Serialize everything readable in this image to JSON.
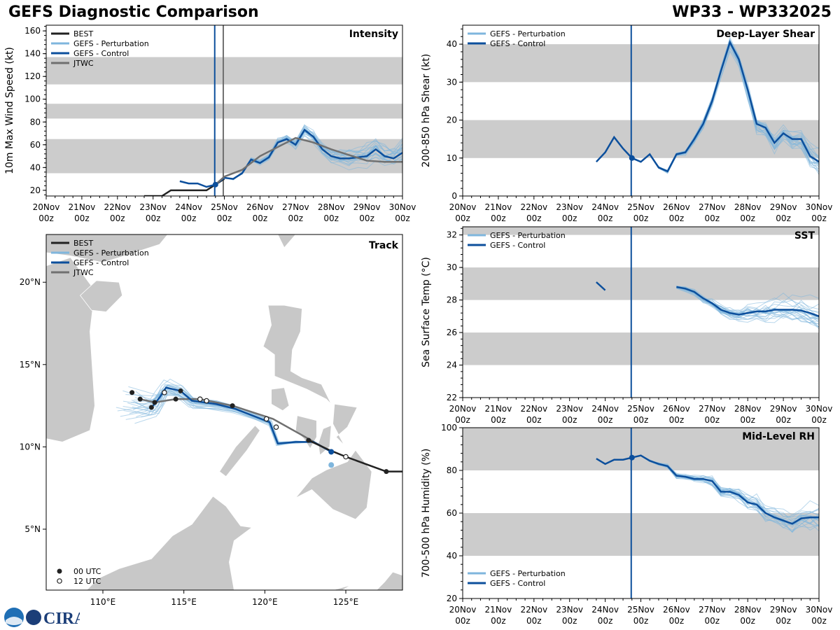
{
  "header": {
    "left_title": "GEFS Diagnostic Comparison",
    "right_title": "WP33 - WP332025"
  },
  "logo_text": "CIRA",
  "colors": {
    "best": "#222222",
    "perturbation": "#7fb6dd",
    "control": "#0c4f9c",
    "jtwc": "#707070",
    "band": "#cccccc",
    "land": "#c8c8c8"
  },
  "time_axis": {
    "ticks": [
      "20Nov\n00z",
      "21Nov\n00z",
      "22Nov\n00z",
      "23Nov\n00z",
      "24Nov\n00z",
      "25Nov\n00z",
      "26Nov\n00z",
      "27Nov\n00z",
      "28Nov\n00z",
      "29Nov\n00z",
      "30Nov\n00z"
    ],
    "init_day": 4.73,
    "jtwc_line_day": 4.97
  },
  "chart_data": [
    {
      "id": "intensity",
      "type": "line",
      "title": "Intensity",
      "ylabel": "10m Max Wind Speed (kt)",
      "xlim": [
        0,
        10
      ],
      "ylim": [
        15,
        165
      ],
      "yticks": [
        20,
        40,
        60,
        80,
        100,
        120,
        140,
        160
      ],
      "bands": [
        [
          35,
          65
        ],
        [
          83,
          96
        ],
        [
          113,
          137
        ]
      ],
      "legend": [
        "BEST",
        "GEFS - Perturbation",
        "GEFS - Control",
        "JTWC"
      ],
      "series": [
        {
          "name": "BEST",
          "kind": "best",
          "points": [
            [
              2.75,
              15
            ],
            [
              3.25,
              15
            ],
            [
              3.5,
              20
            ],
            [
              4.0,
              20
            ],
            [
              4.5,
              20
            ],
            [
              4.75,
              25
            ],
            [
              5.0,
              30
            ]
          ]
        },
        {
          "name": "GEFS - Control",
          "kind": "control",
          "points": [
            [
              3.75,
              28
            ],
            [
              4.0,
              26
            ],
            [
              4.25,
              26
            ],
            [
              4.5,
              23
            ],
            [
              4.75,
              25
            ],
            [
              5.0,
              31
            ],
            [
              5.25,
              30
            ],
            [
              5.5,
              35
            ],
            [
              5.75,
              47
            ],
            [
              6.0,
              44
            ],
            [
              6.25,
              49
            ],
            [
              6.5,
              62
            ],
            [
              6.75,
              65
            ],
            [
              7.0,
              60
            ],
            [
              7.25,
              73
            ],
            [
              7.5,
              67
            ],
            [
              7.75,
              56
            ],
            [
              8.0,
              50
            ],
            [
              8.25,
              48
            ],
            [
              8.5,
              48
            ],
            [
              8.75,
              49
            ],
            [
              9.0,
              50
            ],
            [
              9.25,
              56
            ],
            [
              9.5,
              50
            ],
            [
              9.75,
              48
            ],
            [
              10.0,
              53
            ]
          ]
        },
        {
          "name": "JTWC",
          "kind": "jtwc",
          "points": [
            [
              4.75,
              25
            ],
            [
              5.0,
              32
            ],
            [
              5.5,
              38
            ],
            [
              6.0,
              50
            ],
            [
              6.5,
              58
            ],
            [
              7.0,
              66
            ],
            [
              7.5,
              62
            ],
            [
              8.0,
              56
            ],
            [
              8.5,
              51
            ],
            [
              9.0,
              46
            ],
            [
              9.5,
              45
            ],
            [
              10.0,
              45
            ]
          ]
        }
      ]
    },
    {
      "id": "shear",
      "type": "line",
      "title": "Deep-Layer Shear",
      "ylabel": "200-850 hPa Shear (kt)",
      "xlim": [
        0,
        10
      ],
      "ylim": [
        0,
        45
      ],
      "yticks": [
        0,
        10,
        20,
        30,
        40
      ],
      "bands": [
        [
          10,
          20
        ],
        [
          30,
          40
        ]
      ],
      "legend": [
        "GEFS - Perturbation",
        "GEFS - Control"
      ],
      "series": [
        {
          "name": "GEFS - Control",
          "kind": "control",
          "points": [
            [
              3.75,
              9
            ],
            [
              4.0,
              11.5
            ],
            [
              4.25,
              15.5
            ],
            [
              4.5,
              12.5
            ],
            [
              4.75,
              10
            ],
            [
              5.0,
              9
            ],
            [
              5.25,
              11
            ],
            [
              5.5,
              7.5
            ],
            [
              5.75,
              6.5
            ],
            [
              6.0,
              11
            ],
            [
              6.25,
              11.5
            ],
            [
              6.5,
              15
            ],
            [
              6.75,
              19
            ],
            [
              7.0,
              25
            ],
            [
              7.25,
              33
            ],
            [
              7.5,
              40.5
            ],
            [
              7.75,
              36
            ],
            [
              8.0,
              28
            ],
            [
              8.25,
              19
            ],
            [
              8.5,
              18
            ],
            [
              8.75,
              14
            ],
            [
              9.0,
              16.5
            ],
            [
              9.25,
              15
            ],
            [
              9.5,
              15
            ],
            [
              9.75,
              10.5
            ],
            [
              10.0,
              9
            ]
          ]
        }
      ]
    },
    {
      "id": "sst",
      "type": "line",
      "title": "SST",
      "ylabel": "Sea Surface Temp (°C)",
      "xlim": [
        0,
        10
      ],
      "ylim": [
        22,
        32.5
      ],
      "yticks": [
        22,
        24,
        26,
        28,
        30,
        32
      ],
      "bands": [
        [
          24,
          26
        ],
        [
          28,
          30
        ],
        [
          32,
          32.5
        ]
      ],
      "legend": [
        "GEFS - Perturbation",
        "GEFS - Control"
      ],
      "series": [
        {
          "name": "GEFS - Control",
          "kind": "control",
          "seg": true,
          "points": [
            [
              3.75,
              29.1
            ],
            [
              4.0,
              28.6
            ]
          ]
        },
        {
          "name": "GEFS - Control",
          "kind": "control",
          "points": [
            [
              6.0,
              28.8
            ],
            [
              6.25,
              28.7
            ],
            [
              6.5,
              28.5
            ],
            [
              6.75,
              28.1
            ],
            [
              7.0,
              27.8
            ],
            [
              7.25,
              27.4
            ],
            [
              7.5,
              27.2
            ],
            [
              7.75,
              27.1
            ],
            [
              8.0,
              27.2
            ],
            [
              8.25,
              27.3
            ],
            [
              8.5,
              27.3
            ],
            [
              8.75,
              27.4
            ],
            [
              9.0,
              27.4
            ],
            [
              9.25,
              27.4
            ],
            [
              9.5,
              27.35
            ],
            [
              9.75,
              27.2
            ],
            [
              10.0,
              27.0
            ]
          ]
        }
      ]
    },
    {
      "id": "rh",
      "type": "line",
      "title": "Mid-Level RH",
      "ylabel": "700-500 hPa Humidity (%)",
      "xlim": [
        0,
        10
      ],
      "ylim": [
        20,
        100
      ],
      "yticks": [
        20,
        40,
        60,
        80,
        100
      ],
      "bands": [
        [
          40,
          60
        ],
        [
          80,
          100
        ]
      ],
      "legend": [
        "GEFS - Perturbation",
        "GEFS - Control"
      ],
      "series": [
        {
          "name": "GEFS - Control",
          "kind": "control",
          "points": [
            [
              3.75,
              85.5
            ],
            [
              4.0,
              83
            ],
            [
              4.25,
              85
            ],
            [
              4.5,
              85
            ],
            [
              4.75,
              86
            ],
            [
              5.0,
              87
            ],
            [
              5.25,
              84.5
            ],
            [
              5.5,
              83
            ],
            [
              5.75,
              82
            ],
            [
              6.0,
              77.5
            ],
            [
              6.25,
              77
            ],
            [
              6.5,
              76
            ],
            [
              6.75,
              76
            ],
            [
              7.0,
              75
            ],
            [
              7.25,
              70
            ],
            [
              7.5,
              70
            ],
            [
              7.75,
              68.5
            ],
            [
              8.0,
              65
            ],
            [
              8.25,
              64
            ],
            [
              8.5,
              60
            ],
            [
              8.75,
              58
            ],
            [
              9.0,
              56.5
            ],
            [
              9.25,
              55
            ],
            [
              9.5,
              57.5
            ],
            [
              9.75,
              58
            ],
            [
              10.0,
              58
            ]
          ]
        }
      ]
    },
    {
      "id": "track",
      "type": "map",
      "title": "Track",
      "lon_range": [
        106.5,
        128.5
      ],
      "lat_range": [
        1.3,
        22.9
      ],
      "xticks": [
        "110°E",
        "115°E",
        "120°E",
        "125°E"
      ],
      "yticks": [
        "5°N",
        "10°N",
        "15°N",
        "20°N"
      ],
      "legend": [
        "BEST",
        "GEFS - Perturbation",
        "GEFS - Control",
        "JTWC"
      ],
      "marker_legend": [
        "00 UTC",
        "12 UTC"
      ],
      "best": [
        [
          128.5,
          8.5
        ],
        [
          127.5,
          8.5
        ],
        [
          125.0,
          9.4
        ],
        [
          124.0,
          9.8
        ],
        [
          122.7,
          10.4
        ]
      ],
      "best_00": [
        [
          127.5,
          8.5
        ],
        [
          122.7,
          10.4
        ]
      ],
      "best_12": [
        [
          125.0,
          9.4
        ]
      ],
      "control": [
        [
          124.1,
          9.7
        ],
        [
          123.0,
          10.3
        ],
        [
          121.9,
          10.3
        ],
        [
          120.8,
          10.2
        ],
        [
          120.3,
          11.5
        ],
        [
          118.2,
          12.3
        ],
        [
          117.0,
          12.6
        ],
        [
          115.5,
          12.8
        ],
        [
          114.8,
          13.4
        ],
        [
          113.9,
          13.6
        ],
        [
          113.5,
          13.0
        ],
        [
          113.1,
          12.5
        ]
      ],
      "jtwc": [
        [
          124.1,
          9.7
        ],
        [
          122.5,
          10.6
        ],
        [
          120.5,
          11.7
        ],
        [
          118.0,
          12.5
        ],
        [
          116.0,
          12.9
        ],
        [
          114.5,
          12.9
        ],
        [
          113.2,
          12.7
        ],
        [
          112.3,
          12.9
        ]
      ],
      "jtwc_00": [
        [
          118.0,
          12.5
        ],
        [
          114.5,
          12.9
        ],
        [
          113.2,
          12.7
        ],
        [
          112.3,
          12.9
        ],
        [
          111.8,
          13.3
        ],
        [
          114.8,
          13.4
        ],
        [
          113.0,
          12.4
        ]
      ],
      "jtwc_12": [
        [
          120.1,
          11.7
        ],
        [
          120.7,
          11.2
        ],
        [
          116.0,
          12.9
        ],
        [
          116.4,
          12.8
        ],
        [
          113.8,
          13.3
        ]
      ]
    }
  ]
}
